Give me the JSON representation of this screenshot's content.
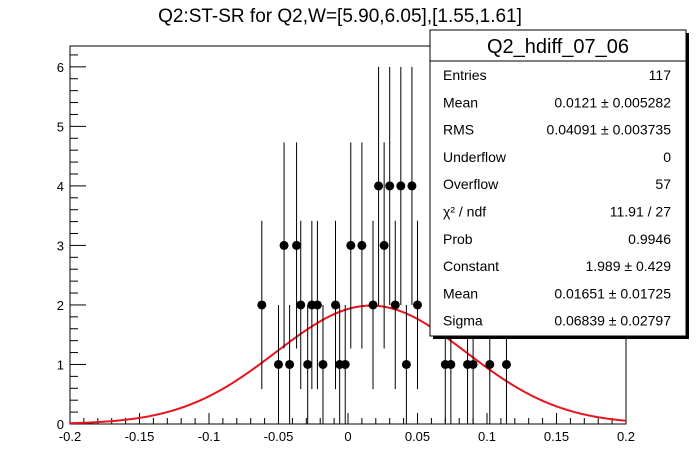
{
  "chart_data": {
    "type": "scatter",
    "title": "Q2:ST-SR for Q2,W=[5.90,6.05],[1.55,1.61]",
    "xlabel": "",
    "ylabel": "",
    "xlim": [
      -0.2,
      0.2
    ],
    "ylim": [
      0,
      6.35
    ],
    "x_ticks": [
      "-0.2",
      "-0.15",
      "-0.1",
      "-0.05",
      "0",
      "0.05",
      "0.1",
      "0.15",
      "0.2"
    ],
    "x_tick_values": [
      -0.2,
      -0.15,
      -0.1,
      -0.05,
      0,
      0.05,
      0.1,
      0.15,
      0.2
    ],
    "y_ticks": [
      "0",
      "1",
      "2",
      "3",
      "4",
      "5",
      "6"
    ],
    "y_tick_values": [
      0,
      1,
      2,
      3,
      4,
      5,
      6
    ],
    "grid": false,
    "points": [
      {
        "x": -0.062,
        "y": 2
      },
      {
        "x": -0.05,
        "y": 1
      },
      {
        "x": -0.046,
        "y": 3
      },
      {
        "x": -0.042,
        "y": 1
      },
      {
        "x": -0.037,
        "y": 3
      },
      {
        "x": -0.034,
        "y": 2
      },
      {
        "x": -0.029,
        "y": 1
      },
      {
        "x": -0.026,
        "y": 2
      },
      {
        "x": -0.022,
        "y": 2
      },
      {
        "x": -0.018,
        "y": 1
      },
      {
        "x": -0.009,
        "y": 2
      },
      {
        "x": -0.006,
        "y": 1
      },
      {
        "x": -0.002,
        "y": 1
      },
      {
        "x": 0.002,
        "y": 3
      },
      {
        "x": 0.01,
        "y": 3
      },
      {
        "x": 0.018,
        "y": 2
      },
      {
        "x": 0.022,
        "y": 4
      },
      {
        "x": 0.026,
        "y": 3
      },
      {
        "x": 0.03,
        "y": 4
      },
      {
        "x": 0.034,
        "y": 2
      },
      {
        "x": 0.038,
        "y": 4
      },
      {
        "x": 0.042,
        "y": 1
      },
      {
        "x": 0.046,
        "y": 4
      },
      {
        "x": 0.05,
        "y": 2
      },
      {
        "x": 0.07,
        "y": 1
      },
      {
        "x": 0.074,
        "y": 1
      },
      {
        "x": 0.086,
        "y": 1
      },
      {
        "x": 0.09,
        "y": 1
      },
      {
        "x": 0.102,
        "y": 1
      },
      {
        "x": 0.114,
        "y": 1
      }
    ],
    "fit": {
      "function": "gaus",
      "constant": 1.989,
      "mean": 0.01651,
      "sigma": 0.06839,
      "color": "#e8141d"
    },
    "stats_box": {
      "name": "Q2_hdiff_07_06",
      "rows": [
        {
          "label": "Entries",
          "value": "117"
        },
        {
          "label": "Mean",
          "value": "0.0121 ± 0.005282"
        },
        {
          "label": "RMS",
          "value": "0.04091 ± 0.003735"
        },
        {
          "label": "Underflow",
          "value": "0"
        },
        {
          "label": "Overflow",
          "value": "57"
        },
        {
          "label": "χ² / ndf",
          "value": "11.91 / 27"
        },
        {
          "label": "Prob",
          "value": "0.9946"
        },
        {
          "label": "Constant",
          "value": "1.989 ± 0.429"
        },
        {
          "label": "Mean",
          "value": "0.01651 ± 0.01725"
        },
        {
          "label": "Sigma",
          "value": "0.06839 ± 0.02797"
        }
      ]
    },
    "colors": {
      "points": "#000000",
      "fit": "#e8141d",
      "axes": "#000000"
    }
  }
}
